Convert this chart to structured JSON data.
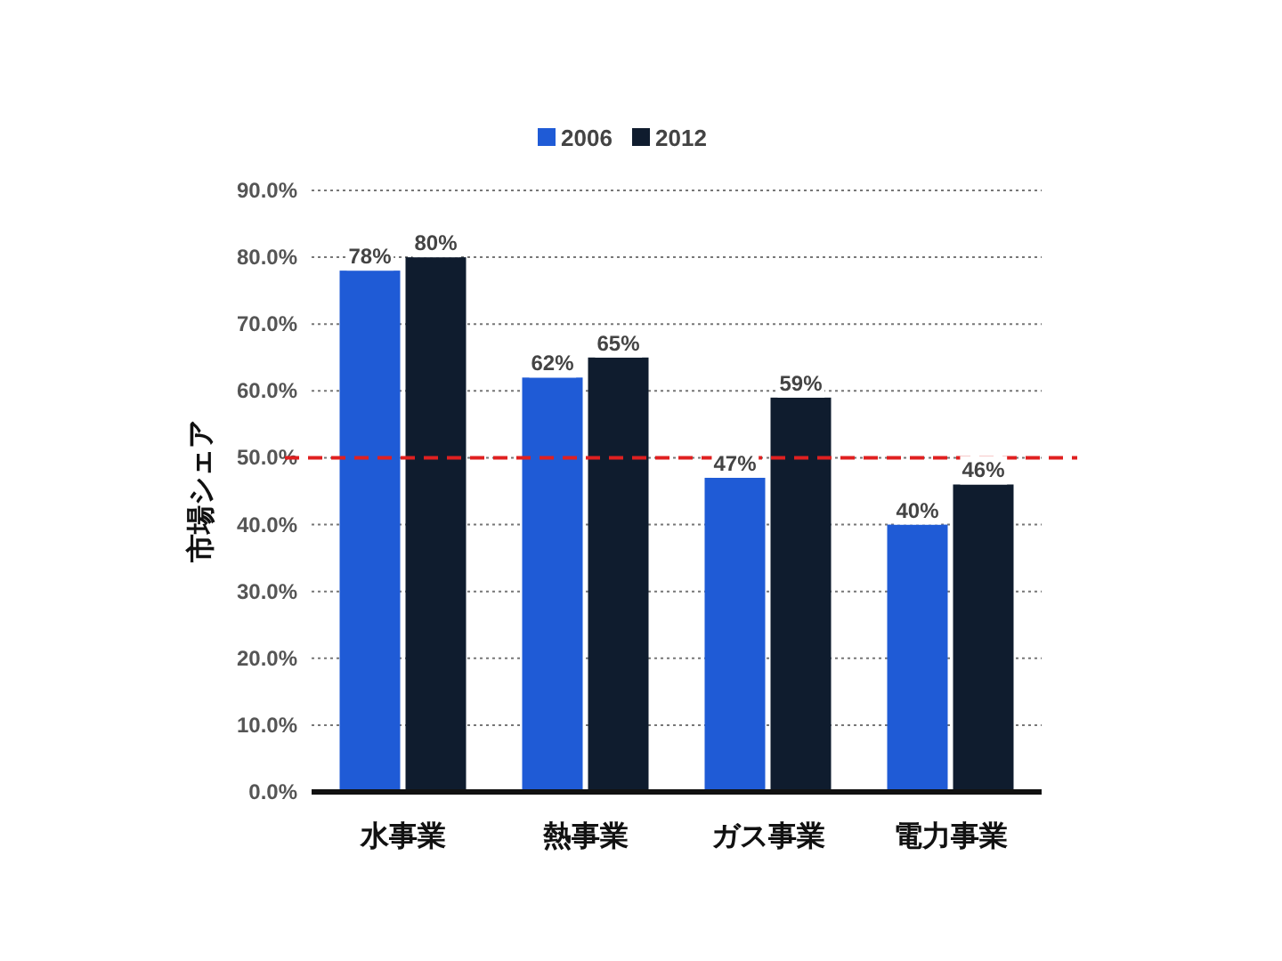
{
  "chart_data": {
    "type": "bar",
    "ylabel": "市場シェア",
    "categories": [
      "水事業",
      "熱事業",
      "ガス事業",
      "電力事業"
    ],
    "series": [
      {
        "name": "2006",
        "color": "#1f5bd6",
        "values": [
          78,
          62,
          47,
          40
        ],
        "value_labels": [
          "78%",
          "62%",
          "47%",
          "40%"
        ]
      },
      {
        "name": "2012",
        "color": "#0f1c2e",
        "values": [
          80,
          65,
          59,
          46
        ],
        "value_labels": [
          "80%",
          "65%",
          "59%",
          "46%"
        ]
      }
    ],
    "ylim": [
      0,
      90
    ],
    "yticks": [
      {
        "value": 0,
        "label": "0.0%"
      },
      {
        "value": 10,
        "label": "10.0%"
      },
      {
        "value": 20,
        "label": "20.0%"
      },
      {
        "value": 30,
        "label": "30.0%"
      },
      {
        "value": 40,
        "label": "40.0%"
      },
      {
        "value": 50,
        "label": "50.0%"
      },
      {
        "value": 60,
        "label": "60.0%"
      },
      {
        "value": 70,
        "label": "70.0%"
      },
      {
        "value": 80,
        "label": "80.0%"
      },
      {
        "value": 90,
        "label": "90.0%"
      }
    ],
    "grid": "y",
    "legend": "top",
    "ref_lines": [
      {
        "axis": "y",
        "value": 50,
        "color": "#e02020",
        "line_style": "dashed"
      }
    ]
  }
}
